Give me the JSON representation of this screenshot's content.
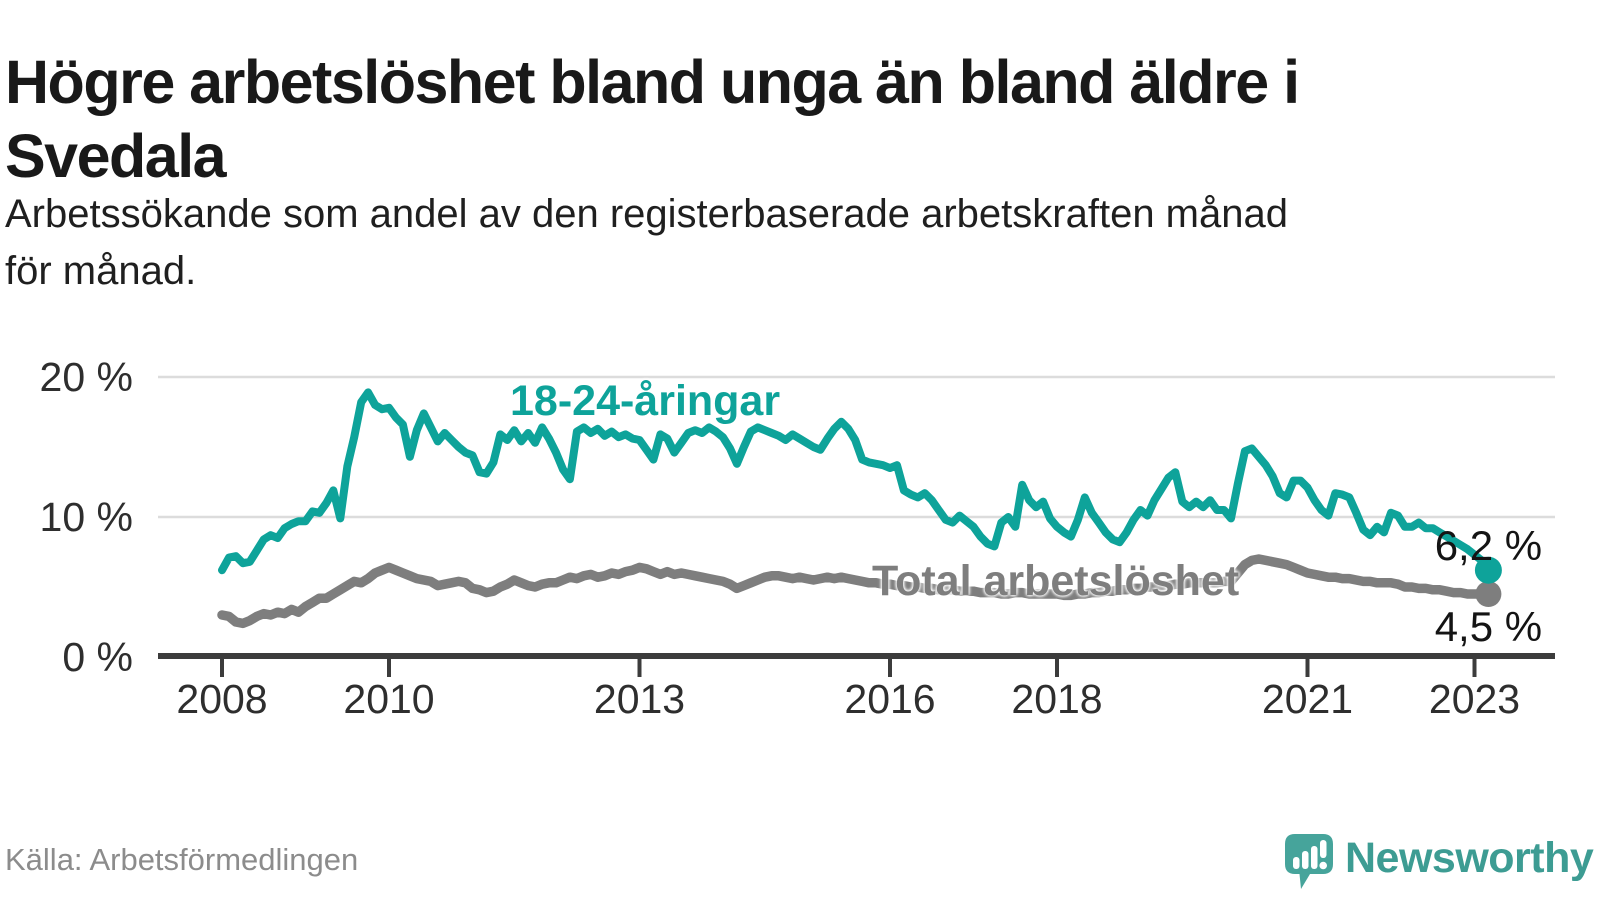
{
  "header": {
    "title_line1": "Högre arbetslöshet bland unga än bland äldre i",
    "title_line2": "Svedala",
    "subtitle_line1": "Arbetssökande som andel av den registerbaserade arbetskraften månad",
    "subtitle_line2": "för månad."
  },
  "footer": {
    "source": "Källa: Arbetsförmedlingen",
    "brand": "Newsworthy"
  },
  "colors": {
    "young": "#0ea39a",
    "total": "#7e7e7e",
    "axis": "#3c3c3c",
    "grid": "#dcdcdc",
    "tick_label": "#2e2e2e",
    "value_label": "#141414",
    "brand_teal": "#3d9c93",
    "icon_teal": "#46a49b",
    "title": "#191919",
    "source_gray": "#8c8c8c"
  },
  "chart_data": {
    "type": "line",
    "unit": "%",
    "x_frequency": "monthly",
    "x_start": {
      "year": 2008,
      "month": 1
    },
    "x_end": {
      "year": 2023,
      "month": 3
    },
    "x_ticks": [
      {
        "year": 2008,
        "label": "2008"
      },
      {
        "year": 2010,
        "label": "2010"
      },
      {
        "year": 2013,
        "label": "2013"
      },
      {
        "year": 2016,
        "label": "2016"
      },
      {
        "year": 2018,
        "label": "2018"
      },
      {
        "year": 2021,
        "label": "2021"
      },
      {
        "year": 2023,
        "label": "2023"
      }
    ],
    "y_ticks": [
      {
        "value": 0,
        "label": "0 %"
      },
      {
        "value": 10,
        "label": "10 %"
      },
      {
        "value": 20,
        "label": "20 %"
      }
    ],
    "ylim": [
      0,
      21.5
    ],
    "grid": "horizontal",
    "legend_position": "inline-annotations",
    "series": [
      {
        "name": "18-24-åringar",
        "color": "#0ea39a",
        "end_label": "6,2 %",
        "last_value": 6.2,
        "values": [
          6.2,
          7.1,
          7.2,
          6.7,
          6.8,
          7.6,
          8.4,
          8.7,
          8.5,
          9.2,
          9.5,
          9.7,
          9.7,
          10.4,
          10.3,
          11.0,
          11.9,
          9.9,
          13.6,
          15.7,
          18.2,
          18.9,
          18.0,
          17.7,
          17.8,
          17.1,
          16.6,
          14.3,
          16.2,
          17.4,
          16.4,
          15.4,
          16.0,
          15.5,
          15.0,
          14.6,
          14.4,
          13.2,
          13.1,
          13.9,
          15.9,
          15.5,
          16.2,
          15.4,
          16.0,
          15.3,
          16.4,
          15.6,
          14.6,
          13.4,
          12.7,
          16.1,
          16.4,
          16.0,
          16.3,
          15.8,
          16.1,
          15.7,
          15.9,
          15.6,
          15.5,
          14.8,
          14.1,
          15.9,
          15.6,
          14.6,
          15.3,
          16.0,
          16.2,
          16.0,
          16.4,
          16.1,
          15.7,
          14.9,
          13.8,
          15.0,
          16.1,
          16.4,
          16.2,
          16.0,
          15.8,
          15.5,
          15.9,
          15.6,
          15.3,
          15.0,
          14.8,
          15.6,
          16.3,
          16.8,
          16.3,
          15.5,
          14.1,
          13.9,
          13.8,
          13.7,
          13.5,
          13.7,
          11.9,
          11.6,
          11.4,
          11.7,
          11.2,
          10.5,
          9.8,
          9.6,
          10.1,
          9.7,
          9.3,
          8.6,
          8.1,
          7.9,
          9.6,
          10.0,
          9.3,
          12.3,
          11.2,
          10.7,
          11.1,
          9.9,
          9.3,
          8.9,
          8.6,
          9.8,
          11.4,
          10.3,
          9.6,
          8.9,
          8.4,
          8.2,
          8.9,
          9.8,
          10.5,
          10.1,
          11.2,
          12.0,
          12.8,
          13.2,
          11.1,
          10.7,
          11.1,
          10.7,
          11.2,
          10.5,
          10.5,
          9.9,
          12.4,
          14.7,
          14.9,
          14.3,
          13.7,
          12.9,
          11.7,
          11.4,
          12.6,
          12.6,
          12.1,
          11.2,
          10.5,
          10.1,
          11.7,
          11.6,
          11.4,
          10.3,
          9.1,
          8.7,
          9.3,
          8.9,
          10.3,
          10.1,
          9.3,
          9.3,
          9.6,
          9.2,
          9.2,
          8.9,
          8.6,
          8.3,
          8.0,
          7.7,
          7.3,
          6.9,
          6.2
        ]
      },
      {
        "name": "Total arbetslöshet",
        "color": "#7e7e7e",
        "end_label": "4,5 %",
        "last_value": 4.5,
        "values": [
          3.0,
          2.9,
          2.5,
          2.4,
          2.6,
          2.9,
          3.1,
          3.0,
          3.2,
          3.1,
          3.4,
          3.2,
          3.6,
          3.9,
          4.2,
          4.2,
          4.5,
          4.8,
          5.1,
          5.4,
          5.3,
          5.6,
          6.0,
          6.2,
          6.4,
          6.2,
          6.0,
          5.8,
          5.6,
          5.5,
          5.4,
          5.1,
          5.2,
          5.3,
          5.4,
          5.3,
          4.9,
          4.8,
          4.6,
          4.7,
          5.0,
          5.2,
          5.5,
          5.3,
          5.1,
          5.0,
          5.2,
          5.3,
          5.3,
          5.5,
          5.7,
          5.6,
          5.8,
          5.9,
          5.7,
          5.8,
          6.0,
          5.9,
          6.1,
          6.2,
          6.4,
          6.3,
          6.1,
          5.9,
          6.1,
          5.9,
          6.0,
          5.9,
          5.8,
          5.7,
          5.6,
          5.5,
          5.4,
          5.2,
          4.9,
          5.1,
          5.3,
          5.5,
          5.7,
          5.8,
          5.8,
          5.7,
          5.6,
          5.7,
          5.6,
          5.5,
          5.6,
          5.7,
          5.6,
          5.7,
          5.6,
          5.5,
          5.4,
          5.3,
          5.3,
          5.2,
          5.2,
          5.1,
          5.1,
          5.0,
          5.0,
          4.9,
          4.9,
          4.8,
          4.8,
          4.8,
          4.7,
          4.7,
          4.7,
          4.6,
          4.6,
          4.6,
          4.5,
          4.5,
          4.6,
          4.6,
          4.5,
          4.5,
          4.5,
          4.5,
          4.5,
          4.4,
          4.4,
          4.5,
          4.5,
          4.6,
          4.6,
          4.7,
          4.7,
          4.8,
          4.8,
          4.9,
          4.9,
          5.0,
          5.0,
          5.1,
          5.1,
          5.2,
          5.2,
          5.3,
          5.3,
          5.3,
          5.3,
          5.3,
          5.4,
          5.4,
          6.0,
          6.6,
          6.9,
          7.0,
          6.9,
          6.8,
          6.7,
          6.6,
          6.4,
          6.2,
          6.0,
          5.9,
          5.8,
          5.7,
          5.7,
          5.6,
          5.6,
          5.5,
          5.4,
          5.4,
          5.3,
          5.3,
          5.3,
          5.2,
          5.0,
          5.0,
          4.9,
          4.9,
          4.8,
          4.8,
          4.7,
          4.6,
          4.6,
          4.5,
          4.5,
          4.5,
          4.5
        ]
      }
    ]
  }
}
